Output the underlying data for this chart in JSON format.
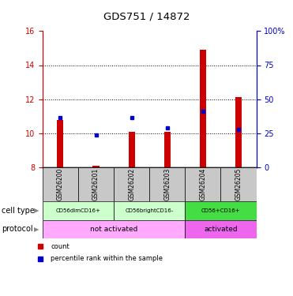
{
  "title": "GDS751 / 14872",
  "samples": [
    "GSM26200",
    "GSM26201",
    "GSM26202",
    "GSM26203",
    "GSM26204",
    "GSM26205"
  ],
  "red_values": [
    10.8,
    8.1,
    10.1,
    10.1,
    14.9,
    12.1
  ],
  "blue_values": [
    10.9,
    9.9,
    10.9,
    10.3,
    11.3,
    10.2
  ],
  "ylim_left": [
    8,
    16
  ],
  "ylim_right": [
    0,
    100
  ],
  "yticks_left": [
    8,
    10,
    12,
    14,
    16
  ],
  "yticks_right": [
    0,
    25,
    50,
    75,
    100
  ],
  "ytick_labels_right": [
    "0",
    "25",
    "50",
    "75",
    "100%"
  ],
  "grid_yticks": [
    10,
    12,
    14
  ],
  "cell_types": [
    {
      "label": "CD56dimCD16+",
      "color": "#CCFFCC",
      "span": [
        0,
        2
      ]
    },
    {
      "label": "CD56brightCD16-",
      "color": "#CCFFCC",
      "span": [
        2,
        4
      ]
    },
    {
      "label": "CD56+CD16+",
      "color": "#44DD44",
      "span": [
        4,
        6
      ]
    }
  ],
  "protocol": [
    {
      "label": "not activated",
      "color": "#FFAAFF",
      "span": [
        0,
        4
      ]
    },
    {
      "label": "activated",
      "color": "#EE66EE",
      "span": [
        4,
        6
      ]
    }
  ],
  "bar_color": "#CC0000",
  "dot_color": "#0000CC",
  "axis_color_left": "#CC0000",
  "axis_color_right": "#0000CC",
  "sample_bg_color": "#C8C8C8",
  "bar_width": 0.18,
  "legend_items": [
    {
      "label": "count",
      "color": "#CC0000"
    },
    {
      "label": "percentile rank within the sample",
      "color": "#0000CC"
    }
  ]
}
